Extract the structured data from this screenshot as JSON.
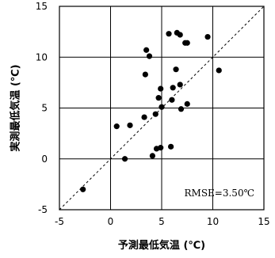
{
  "chart_data": {
    "type": "scatter",
    "title": "",
    "xlabel": "予測最低気温 (℃)",
    "ylabel": "実測最低気温 (℃)",
    "xlim": [
      -5,
      15
    ],
    "ylim": [
      -5,
      15
    ],
    "xticks": [
      -5,
      0,
      5,
      10,
      15
    ],
    "yticks": [
      -5,
      0,
      5,
      10,
      15
    ],
    "grid": true,
    "reference_line": "y = x (dashed)",
    "annotation": "RMSE=3.50℃",
    "annotation_position": "bottom-right",
    "marker_color": "#000000",
    "points": [
      {
        "x": -2.7,
        "y": -3.0
      },
      {
        "x": 0.6,
        "y": 3.2
      },
      {
        "x": 1.4,
        "y": 0.0
      },
      {
        "x": 1.9,
        "y": 3.3
      },
      {
        "x": 3.3,
        "y": 4.1
      },
      {
        "x": 3.4,
        "y": 8.3
      },
      {
        "x": 3.5,
        "y": 10.7
      },
      {
        "x": 3.8,
        "y": 10.1
      },
      {
        "x": 4.1,
        "y": 0.3
      },
      {
        "x": 4.4,
        "y": 4.4
      },
      {
        "x": 4.5,
        "y": 1.0
      },
      {
        "x": 4.7,
        "y": 6.0
      },
      {
        "x": 4.9,
        "y": 1.1
      },
      {
        "x": 4.9,
        "y": 6.9
      },
      {
        "x": 5.0,
        "y": 5.1
      },
      {
        "x": 5.7,
        "y": 12.3
      },
      {
        "x": 5.9,
        "y": 1.2
      },
      {
        "x": 6.0,
        "y": 5.8
      },
      {
        "x": 6.1,
        "y": 7.0
      },
      {
        "x": 6.4,
        "y": 8.8
      },
      {
        "x": 6.5,
        "y": 12.4
      },
      {
        "x": 6.8,
        "y": 12.2
      },
      {
        "x": 6.8,
        "y": 7.3
      },
      {
        "x": 6.9,
        "y": 4.9
      },
      {
        "x": 7.3,
        "y": 11.4
      },
      {
        "x": 7.5,
        "y": 11.4
      },
      {
        "x": 7.5,
        "y": 5.4
      },
      {
        "x": 9.5,
        "y": 12.0
      },
      {
        "x": 10.6,
        "y": 8.7
      }
    ]
  }
}
